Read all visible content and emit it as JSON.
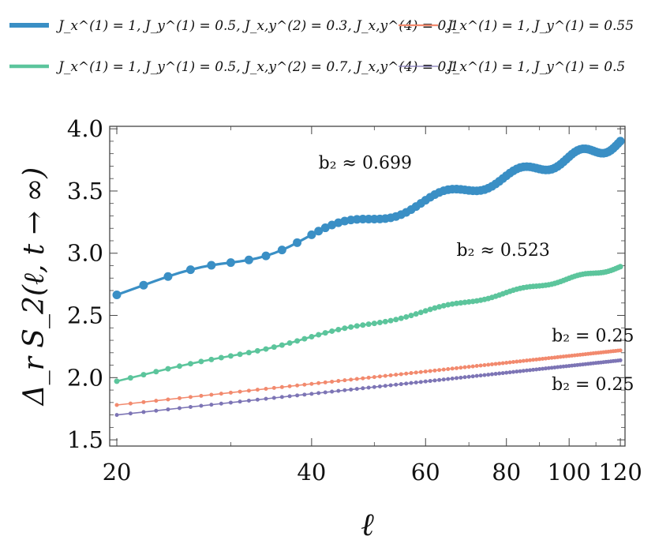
{
  "chart_data": {
    "type": "line",
    "xlabel": "ℓ",
    "ylabel": "Δ_r S_2(ℓ, t → ∞)",
    "xscale": "log",
    "xlim": [
      19.5,
      122
    ],
    "ylim": [
      1.45,
      4.02
    ],
    "xticks": [
      20,
      40,
      60,
      80,
      100,
      120
    ],
    "yticks": [
      1.5,
      2.0,
      2.5,
      3.0,
      3.5,
      4.0
    ],
    "xtick_labels": [
      "20",
      "40",
      "60",
      "80",
      "100",
      "120"
    ],
    "ytick_labels": [
      "1.5",
      "2.0",
      "2.5",
      "3.0",
      "3.5",
      "4.0"
    ],
    "legend_position": "top (above plot, two columns)",
    "series": [
      {
        "name": "J_x^(1) = 1, J_y^(1) = 0.5, J_x,y^(2) = 0.3, J_x,y^(4) = 0.1",
        "color": "#3a8fc5",
        "b2": 0.699,
        "base": 2.66,
        "osc_amp": 0.045,
        "marker": "large",
        "annotation": "b₂ ≈ 0.699"
      },
      {
        "name": "J_x^(1) = 1, J_y^(1) = 0.5, J_x,y^(2) = 0.7, J_x,y^(4) = 0.1",
        "color": "#5cc59c",
        "b2": 0.523,
        "base": 1.97,
        "osc_amp": 0.012,
        "marker": "medium",
        "annotation": "b₂ ≈ 0.523"
      },
      {
        "name": "J_x^(1) = 1, J_y^(1) = 0.55",
        "color": "#f28a6e",
        "b2": 0.25,
        "base": 1.78,
        "osc_amp": 0,
        "marker": "small",
        "annotation": "b₂ = 0.25"
      },
      {
        "name": "J_x^(1) = 1, J_y^(1) = 0.5",
        "color": "#7d75b5",
        "b2": 0.25,
        "base": 1.7,
        "osc_amp": 0,
        "marker": "small",
        "annotation": "b₂ = 0.25"
      }
    ]
  }
}
